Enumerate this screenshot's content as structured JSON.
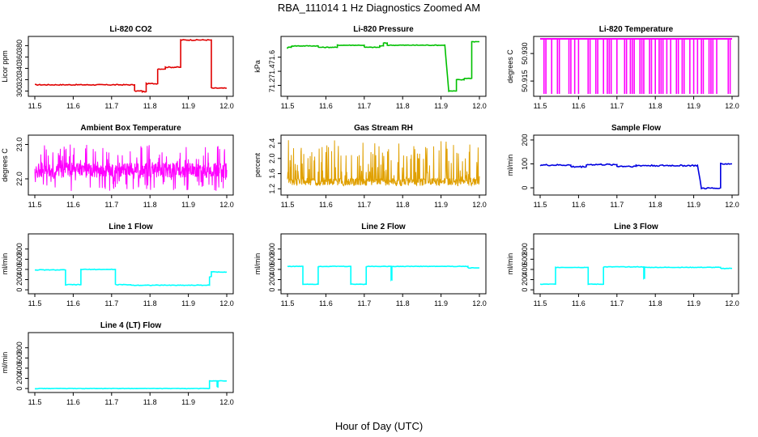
{
  "figure": {
    "title": "RBA_111014  1 Hz Diagnostics Zoomed AM",
    "xlabel": "Hour of Day (UTC)"
  },
  "chart_data": [
    {
      "type": "line",
      "title": "Li-820 CO2",
      "ylabel": "Licor ppm",
      "color": "#e00000",
      "xlim": [
        11.5,
        12.0
      ],
      "ylim": [
        295,
        392
      ],
      "xticks": [
        "11.5",
        "11.6",
        "11.7",
        "11.8",
        "11.9",
        "12.0"
      ],
      "yticks": [
        {
          "v": 300,
          "label": "300"
        },
        {
          "v": 320,
          "label": "320"
        },
        {
          "v": 340,
          "label": "340"
        },
        {
          "v": 360,
          "label": "360"
        },
        {
          "v": 380,
          "label": "380"
        }
      ],
      "x": [
        11.5,
        11.76,
        11.76,
        11.78,
        11.78,
        11.79,
        11.79,
        11.82,
        11.82,
        11.84,
        11.84,
        11.88,
        11.88,
        11.96,
        11.96,
        12.0
      ],
      "y": [
        311,
        311,
        300,
        300,
        299,
        299,
        313,
        313,
        339,
        339,
        342,
        342,
        390,
        390,
        305,
        305
      ],
      "noise": 0.8
    },
    {
      "type": "line",
      "title": "Li-820 Pressure",
      "ylabel": "kPa",
      "color": "#00c000",
      "xlim": [
        11.5,
        12.0
      ],
      "ylim": [
        71.08,
        71.86
      ],
      "xticks": [
        "11.5",
        "11.6",
        "11.7",
        "11.8",
        "11.9",
        "12.0"
      ],
      "yticks": [
        {
          "v": 71.2,
          "label": "71.2"
        },
        {
          "v": 71.4,
          "label": "71.4"
        },
        {
          "v": 71.6,
          "label": "71.6"
        }
      ],
      "x": [
        11.5,
        11.5,
        11.51,
        11.51,
        11.58,
        11.58,
        11.63,
        11.63,
        11.7,
        11.7,
        11.74,
        11.74,
        11.75,
        11.75,
        11.76,
        11.76,
        11.91,
        11.92,
        11.92,
        11.94,
        11.94,
        11.96,
        11.96,
        11.98,
        11.98,
        12.0
      ],
      "y": [
        71.72,
        71.74,
        71.74,
        71.76,
        71.76,
        71.74,
        71.74,
        71.77,
        71.77,
        71.74,
        71.74,
        71.76,
        71.76,
        71.8,
        71.8,
        71.77,
        71.77,
        71.12,
        71.12,
        71.12,
        71.28,
        71.28,
        71.3,
        71.3,
        71.82,
        71.82
      ],
      "noise": 0.005
    },
    {
      "type": "spikes",
      "title": "Li-820 Temperature",
      "ylabel": "degrees C",
      "color": "#ff00ff",
      "xlim": [
        11.5,
        12.0
      ],
      "ylim": [
        50.908,
        50.938
      ],
      "xticks": [
        "11.5",
        "11.6",
        "11.7",
        "11.8",
        "11.9",
        "12.0"
      ],
      "yticks": [
        {
          "v": 50.915,
          "label": "50.915"
        },
        {
          "v": 50.93,
          "label": "50.930"
        }
      ],
      "base": 50.938,
      "low": 50.908,
      "spikes": [
        11.51,
        11.515,
        11.53,
        11.545,
        11.55,
        11.575,
        11.58,
        11.59,
        11.6,
        11.625,
        11.63,
        11.645,
        11.65,
        11.665,
        11.675,
        11.68,
        11.685,
        11.7,
        11.72,
        11.725,
        11.735,
        11.74,
        11.745,
        11.76,
        11.765,
        11.77,
        11.785,
        11.79,
        11.8,
        11.81,
        11.815,
        11.82,
        11.83,
        11.84,
        11.855,
        11.86,
        11.87,
        11.875,
        11.89,
        11.9,
        11.91,
        11.92,
        11.925,
        11.94,
        11.945,
        11.95,
        11.96,
        11.99,
        11.995
      ]
    },
    {
      "type": "noise",
      "title": "Ambient Box Temperature",
      "ylabel": "degrees C",
      "color": "#ff00ff",
      "xlim": [
        11.5,
        12.0
      ],
      "ylim": [
        21.6,
        23.2
      ],
      "xticks": [
        "11.5",
        "11.6",
        "11.7",
        "11.8",
        "11.9",
        "12.0"
      ],
      "yticks": [
        {
          "v": 22.0,
          "label": "22.0"
        },
        {
          "v": 23.0,
          "label": "23.0"
        }
      ],
      "center": 22.25,
      "spread": 0.22,
      "spike": 0.75,
      "samples": 700
    },
    {
      "type": "noise",
      "title": "Gas Stream RH",
      "ylabel": "percent",
      "color": "#e0a000",
      "xlim": [
        11.5,
        12.0
      ],
      "ylim": [
        1.1,
        2.55
      ],
      "xticks": [
        "11.5",
        "11.6",
        "11.7",
        "11.8",
        "11.9",
        "12.0"
      ],
      "yticks": [
        {
          "v": 1.2,
          "label": "1.2"
        },
        {
          "v": 1.6,
          "label": "1.6"
        },
        {
          "v": 2.0,
          "label": "2.0"
        },
        {
          "v": 2.4,
          "label": "2.4"
        }
      ],
      "center": 1.38,
      "spread": 0.1,
      "spike": 1.1,
      "skew": "up",
      "samples": 600
    },
    {
      "type": "line",
      "title": "Sample Flow",
      "ylabel": "ml/min",
      "color": "#0000e0",
      "xlim": [
        11.5,
        12.0
      ],
      "ylim": [
        -20,
        210
      ],
      "xticks": [
        "11.5",
        "11.6",
        "11.7",
        "11.8",
        "11.9",
        "12.0"
      ],
      "yticks": [
        {
          "v": 0,
          "label": "0"
        },
        {
          "v": 100,
          "label": "100"
        },
        {
          "v": 200,
          "label": "200"
        }
      ],
      "x": [
        11.5,
        11.58,
        11.58,
        11.62,
        11.62,
        11.7,
        11.7,
        11.75,
        11.75,
        11.91,
        11.92,
        11.96,
        11.96,
        11.97,
        11.97,
        12.0
      ],
      "y": [
        95,
        95,
        88,
        88,
        97,
        97,
        90,
        90,
        93,
        93,
        -2,
        -2,
        0,
        0,
        100,
        100
      ],
      "noise": 3
    },
    {
      "type": "line",
      "title": "Line 1 Flow",
      "ylabel": "ml/min",
      "color": "#00ffff",
      "xlim": [
        11.5,
        12.0
      ],
      "ylim": [
        -30,
        1050
      ],
      "xticks": [
        "11.5",
        "11.6",
        "11.7",
        "11.8",
        "11.9",
        "12.0"
      ],
      "yticks": [
        {
          "v": 0,
          "label": "0"
        },
        {
          "v": 200,
          "label": "200"
        },
        {
          "v": 400,
          "label": "400"
        },
        {
          "v": 600,
          "label": "600"
        },
        {
          "v": 800,
          "label": "800"
        }
      ],
      "x": [
        11.5,
        11.58,
        11.58,
        11.62,
        11.62,
        11.71,
        11.71,
        11.75,
        11.75,
        11.955,
        11.955,
        11.96,
        11.96,
        12.0
      ],
      "y": [
        390,
        390,
        100,
        100,
        400,
        400,
        100,
        100,
        90,
        90,
        260,
        260,
        350,
        350
      ],
      "noise": 6
    },
    {
      "type": "line",
      "title": "Line 2 Flow",
      "ylabel": "ml/min",
      "color": "#00ffff",
      "xlim": [
        11.5,
        12.0
      ],
      "ylim": [
        -30,
        1050
      ],
      "xticks": [
        "11.5",
        "11.6",
        "11.7",
        "11.8",
        "11.9",
        "12.0"
      ],
      "yticks": [
        {
          "v": 0,
          "label": "0"
        },
        {
          "v": 200,
          "label": "200"
        },
        {
          "v": 400,
          "label": "400"
        },
        {
          "v": 600,
          "label": "600"
        },
        {
          "v": 800,
          "label": "800"
        }
      ],
      "x": [
        11.5,
        11.54,
        11.54,
        11.58,
        11.58,
        11.665,
        11.665,
        11.705,
        11.705,
        11.77,
        11.77,
        11.772,
        11.772,
        11.97,
        11.97,
        12.0
      ],
      "y": [
        460,
        460,
        110,
        110,
        460,
        460,
        110,
        110,
        460,
        460,
        200,
        200,
        460,
        460,
        430,
        430
      ],
      "noise": 5
    },
    {
      "type": "line",
      "title": "Line 3 Flow",
      "ylabel": "ml/min",
      "color": "#00ffff",
      "xlim": [
        11.5,
        12.0
      ],
      "ylim": [
        -30,
        1050
      ],
      "xticks": [
        "11.5",
        "11.6",
        "11.7",
        "11.8",
        "11.9",
        "12.0"
      ],
      "yticks": [
        {
          "v": 0,
          "label": "0"
        },
        {
          "v": 200,
          "label": "200"
        },
        {
          "v": 400,
          "label": "400"
        },
        {
          "v": 600,
          "label": "600"
        },
        {
          "v": 800,
          "label": "800"
        }
      ],
      "x": [
        11.5,
        11.54,
        11.54,
        11.625,
        11.625,
        11.665,
        11.665,
        11.77,
        11.77,
        11.772,
        11.772,
        11.97,
        11.97,
        12.0
      ],
      "y": [
        110,
        110,
        440,
        440,
        110,
        110,
        450,
        450,
        230,
        230,
        440,
        440,
        420,
        420
      ],
      "noise": 5
    },
    {
      "type": "line",
      "title": "Line 4 (LT) Flow",
      "ylabel": "ml/min",
      "color": "#00ffff",
      "xlim": [
        11.5,
        12.0
      ],
      "ylim": [
        -30,
        1050
      ],
      "xticks": [
        "11.5",
        "11.6",
        "11.7",
        "11.8",
        "11.9",
        "12.0"
      ],
      "yticks": [
        {
          "v": 0,
          "label": "0"
        },
        {
          "v": 200,
          "label": "200"
        },
        {
          "v": 400,
          "label": "400"
        },
        {
          "v": 600,
          "label": "600"
        },
        {
          "v": 800,
          "label": "800"
        }
      ],
      "x": [
        11.5,
        11.955,
        11.955,
        11.975,
        11.975,
        11.977,
        11.977,
        12.0
      ],
      "y": [
        0,
        0,
        150,
        150,
        30,
        30,
        150,
        150
      ],
      "noise": 4
    }
  ]
}
